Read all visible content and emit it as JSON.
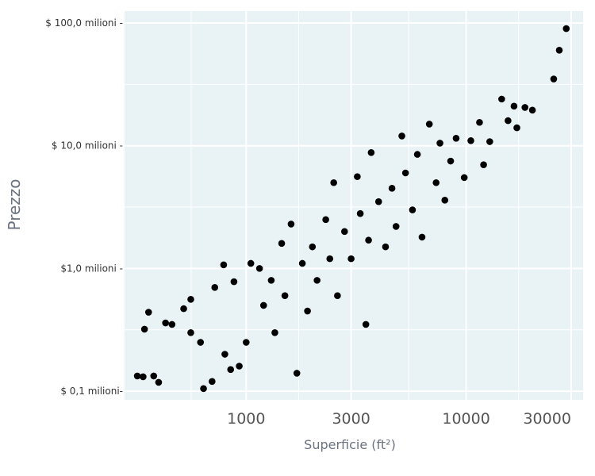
{
  "chart_data": {
    "type": "scatter",
    "title": "",
    "xlabel": "Superficie (ft²)",
    "ylabel": "Prezzo",
    "x_scale": "log10",
    "y_scale": "log10",
    "xlim": [
      280,
      34000
    ],
    "ylim": [
      85000,
      125000000
    ],
    "x_ticks": [
      {
        "value": 1000,
        "label": "1000"
      },
      {
        "value": 3000,
        "label": "3000"
      },
      {
        "value": 10000,
        "label": "10000"
      },
      {
        "value": 30000,
        "label": "30000"
      }
    ],
    "y_ticks": [
      {
        "value": 100000,
        "label": "$ 0,1 milioni-"
      },
      {
        "value": 1000000,
        "label": "$1,0 milioni -"
      },
      {
        "value": 10000000,
        "label": "$ 10,0 milioni -"
      },
      {
        "value": 100000000,
        "label": "$ 100,0 milioni -"
      }
    ],
    "grid": true,
    "legend": "none",
    "colors": {
      "panel": "#e9f3f6",
      "grid": "#ffffff",
      "point": "#000000"
    },
    "points": [
      {
        "x": 320,
        "y": 133000
      },
      {
        "x": 340,
        "y": 131000
      },
      {
        "x": 380,
        "y": 133000
      },
      {
        "x": 400,
        "y": 118000
      },
      {
        "x": 345,
        "y": 320000
      },
      {
        "x": 360,
        "y": 440000
      },
      {
        "x": 430,
        "y": 360000
      },
      {
        "x": 460,
        "y": 350000
      },
      {
        "x": 520,
        "y": 470000
      },
      {
        "x": 560,
        "y": 560000
      },
      {
        "x": 560,
        "y": 300000
      },
      {
        "x": 620,
        "y": 250000
      },
      {
        "x": 640,
        "y": 105000
      },
      {
        "x": 700,
        "y": 120000
      },
      {
        "x": 720,
        "y": 700000
      },
      {
        "x": 790,
        "y": 1070000
      },
      {
        "x": 800,
        "y": 200000
      },
      {
        "x": 850,
        "y": 150000
      },
      {
        "x": 880,
        "y": 780000
      },
      {
        "x": 930,
        "y": 160000
      },
      {
        "x": 1000,
        "y": 250000
      },
      {
        "x": 1050,
        "y": 1100000
      },
      {
        "x": 1150,
        "y": 1000000
      },
      {
        "x": 1200,
        "y": 500000
      },
      {
        "x": 1300,
        "y": 800000
      },
      {
        "x": 1350,
        "y": 300000
      },
      {
        "x": 1450,
        "y": 1600000
      },
      {
        "x": 1500,
        "y": 600000
      },
      {
        "x": 1600,
        "y": 2300000
      },
      {
        "x": 1700,
        "y": 140000
      },
      {
        "x": 1800,
        "y": 1100000
      },
      {
        "x": 1900,
        "y": 450000
      },
      {
        "x": 2000,
        "y": 1500000
      },
      {
        "x": 2100,
        "y": 800000
      },
      {
        "x": 2300,
        "y": 2500000
      },
      {
        "x": 2400,
        "y": 1200000
      },
      {
        "x": 2500,
        "y": 5000000
      },
      {
        "x": 2600,
        "y": 600000
      },
      {
        "x": 2800,
        "y": 2000000
      },
      {
        "x": 3000,
        "y": 1200000
      },
      {
        "x": 3200,
        "y": 5600000
      },
      {
        "x": 3300,
        "y": 2800000
      },
      {
        "x": 3500,
        "y": 350000
      },
      {
        "x": 3600,
        "y": 1700000
      },
      {
        "x": 3700,
        "y": 8800000
      },
      {
        "x": 4000,
        "y": 3500000
      },
      {
        "x": 4300,
        "y": 1500000
      },
      {
        "x": 4600,
        "y": 4500000
      },
      {
        "x": 4800,
        "y": 2200000
      },
      {
        "x": 5100,
        "y": 12000000
      },
      {
        "x": 5300,
        "y": 6000000
      },
      {
        "x": 5700,
        "y": 3000000
      },
      {
        "x": 6000,
        "y": 8500000
      },
      {
        "x": 6300,
        "y": 1800000
      },
      {
        "x": 6800,
        "y": 15000000
      },
      {
        "x": 7300,
        "y": 5000000
      },
      {
        "x": 7600,
        "y": 10500000
      },
      {
        "x": 8000,
        "y": 3600000
      },
      {
        "x": 8500,
        "y": 7500000
      },
      {
        "x": 9000,
        "y": 11500000
      },
      {
        "x": 9800,
        "y": 5500000
      },
      {
        "x": 10500,
        "y": 11000000
      },
      {
        "x": 11500,
        "y": 15500000
      },
      {
        "x": 12000,
        "y": 7000000
      },
      {
        "x": 12800,
        "y": 10800000
      },
      {
        "x": 14500,
        "y": 24000000
      },
      {
        "x": 15500,
        "y": 16000000
      },
      {
        "x": 16500,
        "y": 21000000
      },
      {
        "x": 17000,
        "y": 14000000
      },
      {
        "x": 18500,
        "y": 20500000
      },
      {
        "x": 20000,
        "y": 19500000
      },
      {
        "x": 25000,
        "y": 35000000
      },
      {
        "x": 26500,
        "y": 60000000
      },
      {
        "x": 28500,
        "y": 90000000
      }
    ]
  }
}
